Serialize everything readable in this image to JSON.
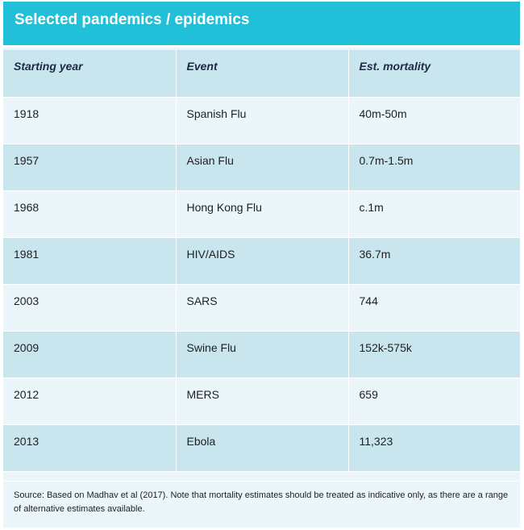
{
  "title": "Selected pandemics / epidemics",
  "table": {
    "headers": [
      "Starting year",
      "Event",
      "Est. mortality"
    ],
    "rows": [
      [
        "1918",
        "Spanish Flu",
        "40m-50m"
      ],
      [
        "1957",
        "Asian Flu",
        "0.7m-1.5m"
      ],
      [
        "1968",
        "Hong Kong Flu",
        "c.1m"
      ],
      [
        "1981",
        "HIV/AIDS",
        "36.7m"
      ],
      [
        "2003",
        "SARS",
        "744"
      ],
      [
        "2009",
        "Swine Flu",
        "152k-575k"
      ],
      [
        "2012",
        "MERS",
        "659"
      ],
      [
        "2013",
        "Ebola",
        "11,323"
      ]
    ]
  },
  "source": "Source: Based on Madhav et al (2017).  Note that mortality estimates should be treated as indicative only, as there are a range of alternative estimates available.",
  "colors": {
    "title_bar": "#21c0d8",
    "row_light": "#eaf6f9",
    "row_dark": "#c9e6ef",
    "header_text": "#1d2a44"
  }
}
